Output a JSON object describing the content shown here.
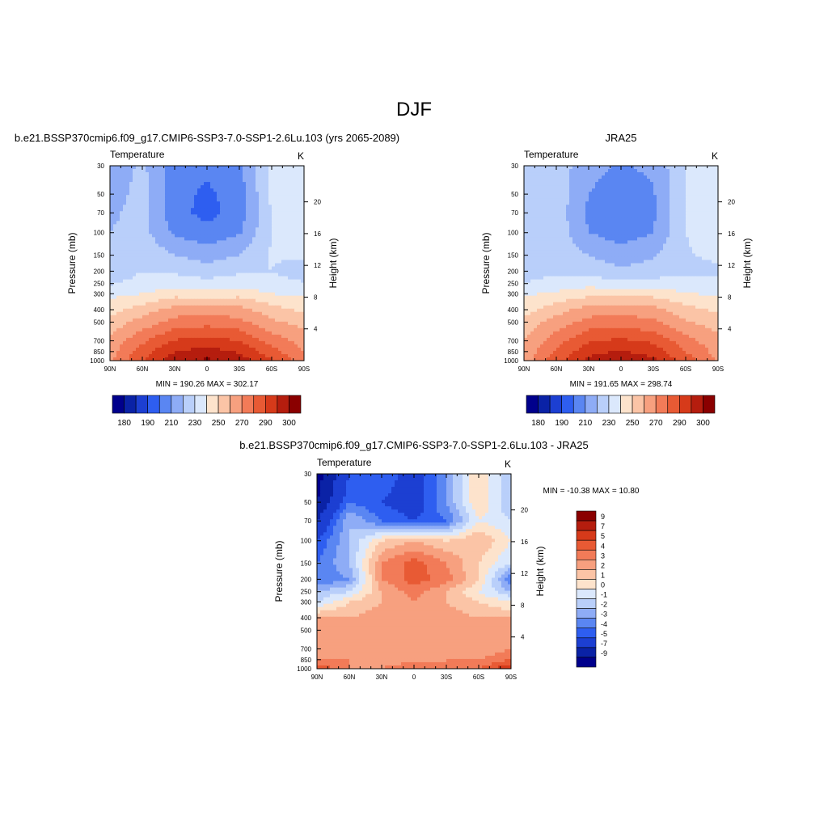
{
  "figure": {
    "title": "DJF"
  },
  "chart_data": [
    {
      "type": "heatmap",
      "subtitle": "b.e21.BSSP370cmip6.f09_g17.CMIP6-SSP3-7.0-SSP1-2.6Lu.103 (yrs 2065-2089)",
      "left_label": "Temperature",
      "right_label": "K",
      "ylabel": "Pressure (mb)",
      "y2label": "Height (km)",
      "x_ticks": [
        "90N",
        "60N",
        "30N",
        "0",
        "30S",
        "60S",
        "90S"
      ],
      "y_ticks": [
        "30",
        "50",
        "70",
        "100",
        "150",
        "200",
        "250",
        "300",
        "400",
        "500",
        "700",
        "850",
        "1000"
      ],
      "height_ticks": [
        "20",
        "16",
        "12",
        "8",
        "4"
      ],
      "stats": "MIN = 190.26  MAX = 302.17",
      "colorbar": "horizontal",
      "colorbar_labels": [
        "180",
        "190",
        "210",
        "230",
        "250",
        "270",
        "290",
        "300"
      ],
      "colorbar_colors": [
        "#00008c",
        "#0a22a6",
        "#1c3fd2",
        "#2e5ef0",
        "#5a86f2",
        "#8eacf6",
        "#b9cffa",
        "#dbe8fc",
        "#fde3cc",
        "#fbc4a6",
        "#f7a07f",
        "#f27b58",
        "#e85a34",
        "#d63a1a",
        "#b51d0e",
        "#8a0000"
      ],
      "field": {
        "x": [
          -90,
          -60,
          -30,
          0,
          30,
          60,
          90
        ],
        "p": [
          30,
          50,
          70,
          100,
          150,
          200,
          250,
          300,
          400,
          500,
          700,
          850,
          1000
        ],
        "values": [
          [
            203,
            212,
            196,
            192,
            198,
            222,
            226
          ],
          [
            205,
            214,
            194,
            188,
            195,
            222,
            226
          ],
          [
            208,
            214,
            193,
            187,
            194,
            221,
            226
          ],
          [
            210,
            214,
            198,
            193,
            199,
            220,
            225
          ],
          [
            214,
            218,
            210,
            206,
            210,
            221,
            222
          ],
          [
            212,
            220,
            218,
            214,
            218,
            220,
            214
          ],
          [
            219,
            224,
            226,
            224,
            226,
            224,
            221
          ],
          [
            227,
            230,
            236,
            235,
            236,
            230,
            228
          ],
          [
            236,
            245,
            254,
            256,
            254,
            244,
            238
          ],
          [
            244,
            254,
            264,
            266,
            263,
            252,
            246
          ],
          [
            252,
            268,
            281,
            284,
            280,
            266,
            256
          ],
          [
            256,
            275,
            290,
            294,
            289,
            274,
            260
          ],
          [
            258,
            280,
            296,
            302,
            295,
            282,
            264
          ]
        ]
      }
    },
    {
      "type": "heatmap",
      "subtitle": "JRA25",
      "left_label": "Temperature",
      "right_label": "K",
      "ylabel": "Pressure (mb)",
      "y2label": "Height (km)",
      "x_ticks": [
        "90N",
        "60N",
        "30N",
        "0",
        "30S",
        "60S",
        "90S"
      ],
      "y_ticks": [
        "30",
        "50",
        "70",
        "100",
        "150",
        "200",
        "250",
        "300",
        "400",
        "500",
        "700",
        "850",
        "1000"
      ],
      "height_ticks": [
        "20",
        "16",
        "12",
        "8",
        "4"
      ],
      "stats": "MIN = 191.65  MAX = 298.74",
      "colorbar": "horizontal",
      "colorbar_labels": [
        "180",
        "190",
        "210",
        "230",
        "250",
        "270",
        "290",
        "300"
      ],
      "colorbar_colors": [
        "#00008c",
        "#0a22a6",
        "#1c3fd2",
        "#2e5ef0",
        "#5a86f2",
        "#8eacf6",
        "#b9cffa",
        "#dbe8fc",
        "#fde3cc",
        "#fbc4a6",
        "#f7a07f",
        "#f27b58",
        "#e85a34",
        "#d63a1a",
        "#b51d0e",
        "#8a0000"
      ],
      "field": {
        "x": [
          -90,
          -60,
          -30,
          0,
          30,
          60,
          90
        ],
        "p": [
          30,
          50,
          70,
          100,
          150,
          200,
          250,
          300,
          400,
          500,
          700,
          850,
          1000
        ],
        "values": [
          [
            214,
            216,
            203,
            199,
            202,
            220,
            228
          ],
          [
            214,
            216,
            200,
            195,
            199,
            221,
            228
          ],
          [
            214,
            216,
            198,
            193,
            198,
            221,
            227
          ],
          [
            214,
            216,
            200,
            195,
            200,
            220,
            226
          ],
          [
            214,
            217,
            210,
            205,
            209,
            219,
            222
          ],
          [
            216,
            218,
            215,
            212,
            214,
            218,
            218
          ],
          [
            220,
            224,
            226,
            224,
            225,
            223,
            222
          ],
          [
            228,
            232,
            237,
            236,
            236,
            231,
            228
          ],
          [
            236,
            246,
            254,
            256,
            254,
            244,
            238
          ],
          [
            244,
            254,
            264,
            266,
            262,
            251,
            245
          ],
          [
            250,
            266,
            279,
            282,
            278,
            264,
            253
          ],
          [
            253,
            271,
            287,
            291,
            286,
            270,
            256
          ],
          [
            255,
            277,
            293,
            298,
            292,
            276,
            258
          ]
        ]
      }
    },
    {
      "type": "heatmap",
      "subtitle": "b.e21.BSSP370cmip6.f09_g17.CMIP6-SSP3-7.0-SSP1-2.6Lu.103 - JRA25",
      "left_label": "Temperature",
      "right_label": "K",
      "ylabel": "Pressure (mb)",
      "y2label": "Height (km)",
      "x_ticks": [
        "90N",
        "60N",
        "30N",
        "0",
        "30S",
        "60S",
        "90S"
      ],
      "y_ticks": [
        "30",
        "50",
        "70",
        "100",
        "150",
        "200",
        "250",
        "300",
        "400",
        "500",
        "700",
        "850",
        "1000"
      ],
      "height_ticks": [
        "20",
        "16",
        "12",
        "8",
        "4"
      ],
      "stats": "MIN = -10.38  MAX =  10.80",
      "colorbar": "vertical",
      "colorbar_labels": [
        "9",
        "7",
        "5",
        "4",
        "3",
        "2",
        "1",
        "0",
        "-1",
        "-2",
        "-3",
        "-4",
        "-5",
        "-7",
        "-9"
      ],
      "colorbar_colors": [
        "#8a0000",
        "#b51d0e",
        "#d63a1a",
        "#e85a34",
        "#f27b58",
        "#f7a07f",
        "#fbc4a6",
        "#fde3cc",
        "#dbe8fc",
        "#b9cffa",
        "#8eacf6",
        "#5a86f2",
        "#2e5ef0",
        "#1c3fd2",
        "#0a22a6",
        "#00008c"
      ],
      "field": {
        "x": [
          -90,
          -60,
          -30,
          0,
          30,
          60,
          90
        ],
        "p": [
          30,
          50,
          70,
          100,
          150,
          200,
          250,
          300,
          400,
          500,
          700,
          850,
          1000
        ],
        "values": [
          [
            -10,
            -5,
            -4,
            -6,
            -3,
            1,
            -2
          ],
          [
            -9,
            -4,
            -5,
            -6,
            -3,
            1,
            -2
          ],
          [
            -7,
            -2,
            -4,
            -5,
            -4,
            0,
            -1
          ],
          [
            -5,
            -2,
            1,
            2,
            1,
            2,
            0
          ],
          [
            -4,
            -2,
            3,
            4.5,
            3,
            1,
            -1
          ],
          [
            -4,
            -3,
            3,
            4.5,
            3.5,
            1,
            -4
          ],
          [
            -2,
            -1,
            2,
            3.5,
            2,
            0,
            -2
          ],
          [
            -1,
            1,
            2,
            3,
            2,
            1,
            0
          ],
          [
            2,
            2,
            2.5,
            3,
            2.5,
            2,
            2
          ],
          [
            2,
            2,
            2.5,
            3,
            2.5,
            2,
            2
          ],
          [
            3,
            2,
            2.5,
            2.5,
            2,
            2,
            3
          ],
          [
            3,
            3,
            2.5,
            2.5,
            3,
            3,
            4
          ],
          [
            5,
            3,
            3,
            4,
            3,
            4,
            6
          ]
        ]
      }
    }
  ]
}
